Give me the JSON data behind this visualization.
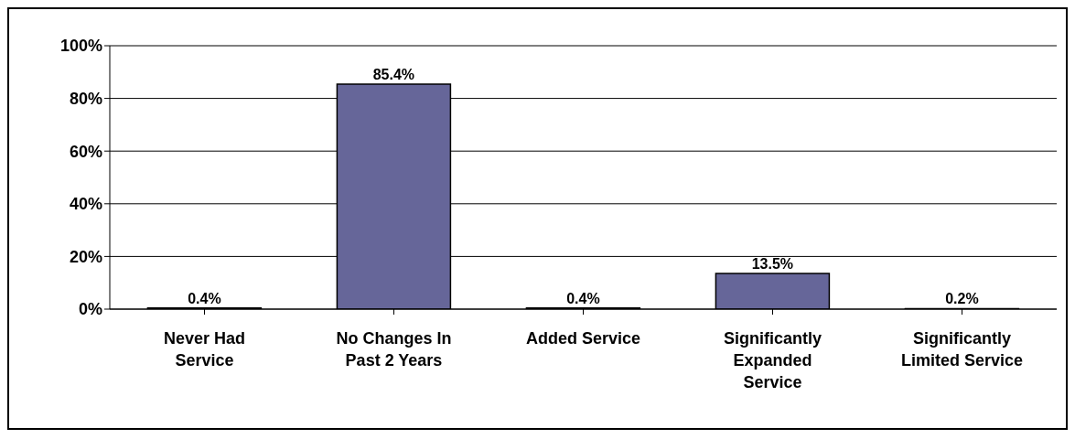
{
  "chart_data": {
    "type": "bar",
    "categories": [
      "Never Had Service",
      "No Changes  In Past 2 Years",
      "Added Service",
      "Significantly Expanded Service",
      "Significantly Limited Service"
    ],
    "values": [
      0.4,
      85.4,
      0.4,
      13.5,
      0.2
    ],
    "value_labels": [
      "0.4%",
      "85.4%",
      "0.4%",
      "13.5%",
      "0.2%"
    ],
    "color": "#666699",
    "ylim": [
      0,
      100
    ],
    "yticks": [
      {
        "value": 0,
        "label": "0%"
      },
      {
        "value": 20,
        "label": "20%"
      },
      {
        "value": 40,
        "label": "40%"
      },
      {
        "value": 60,
        "label": "60%"
      },
      {
        "value": 80,
        "label": "80%"
      },
      {
        "value": 100,
        "label": "100%"
      }
    ],
    "grid": "y"
  }
}
